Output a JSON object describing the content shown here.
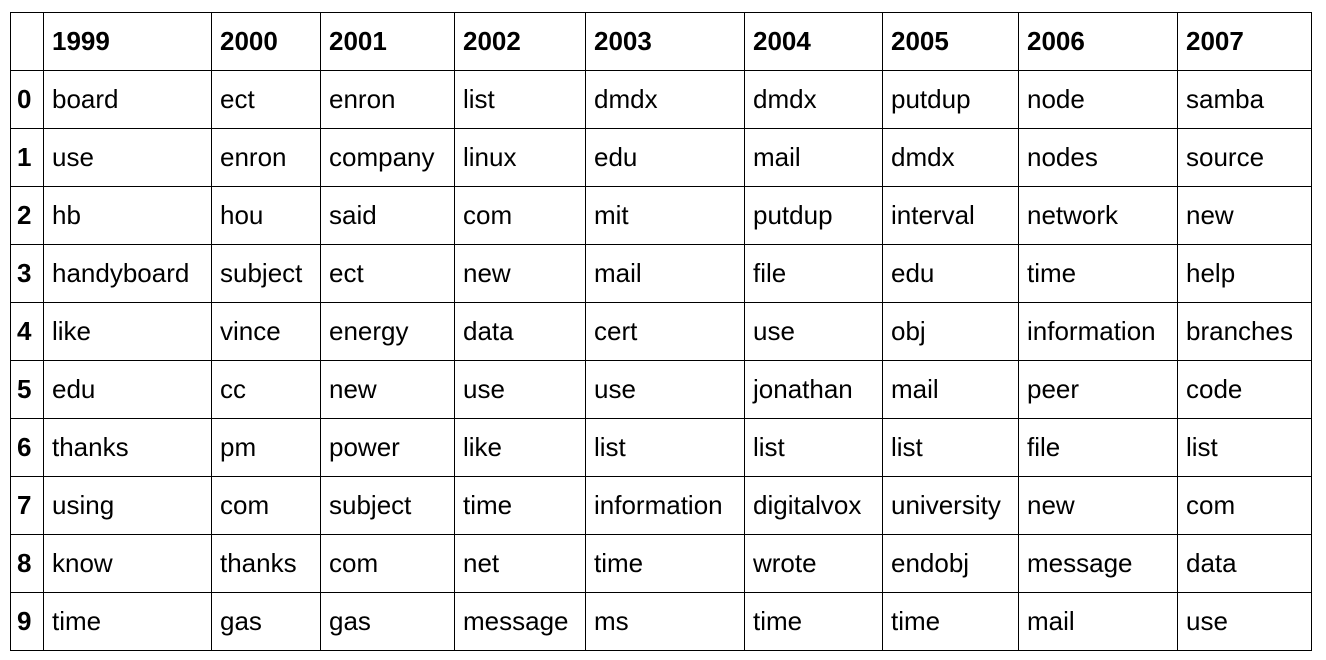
{
  "table": {
    "corner": "",
    "columns": [
      "1999",
      "2000",
      "2001",
      "2002",
      "2003",
      "2004",
      "2005",
      "2006",
      "2007"
    ],
    "rows": [
      {
        "index": "0",
        "cells": [
          "board",
          "ect",
          "enron",
          "list",
          "dmdx",
          "dmdx",
          "putdup",
          "node",
          "samba"
        ]
      },
      {
        "index": "1",
        "cells": [
          "use",
          "enron",
          "company",
          "linux",
          "edu",
          "mail",
          "dmdx",
          "nodes",
          "source"
        ]
      },
      {
        "index": "2",
        "cells": [
          "hb",
          "hou",
          "said",
          "com",
          "mit",
          "putdup",
          "interval",
          "network",
          "new"
        ]
      },
      {
        "index": "3",
        "cells": [
          "handyboard",
          "subject",
          "ect",
          "new",
          "mail",
          "file",
          "edu",
          "time",
          "help"
        ]
      },
      {
        "index": "4",
        "cells": [
          "like",
          "vince",
          "energy",
          "data",
          "cert",
          "use",
          "obj",
          "information",
          "branches"
        ]
      },
      {
        "index": "5",
        "cells": [
          "edu",
          "cc",
          "new",
          "use",
          "use",
          "jonathan",
          "mail",
          "peer",
          "code"
        ]
      },
      {
        "index": "6",
        "cells": [
          "thanks",
          "pm",
          "power",
          "like",
          "list",
          "list",
          "list",
          "file",
          "list"
        ]
      },
      {
        "index": "7",
        "cells": [
          "using",
          "com",
          "subject",
          "time",
          "information",
          "digitalvox",
          "university",
          "new",
          "com"
        ]
      },
      {
        "index": "8",
        "cells": [
          "know",
          "thanks",
          "com",
          "net",
          "time",
          "wrote",
          "endobj",
          "message",
          "data"
        ]
      },
      {
        "index": "9",
        "cells": [
          "time",
          "gas",
          "gas",
          "message",
          "ms",
          "time",
          "time",
          "mail",
          "use"
        ]
      }
    ]
  }
}
